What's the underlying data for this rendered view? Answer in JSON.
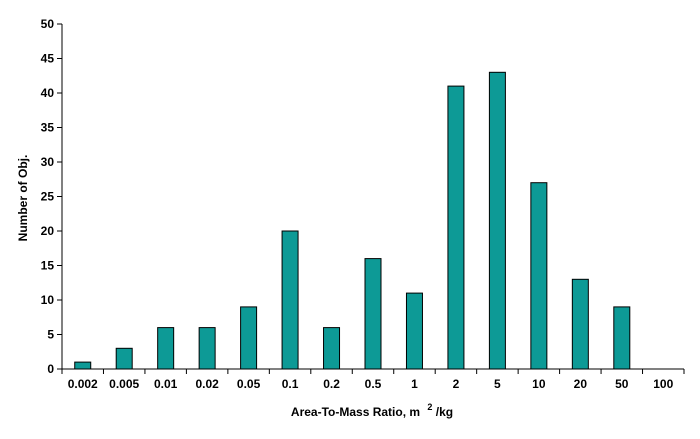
{
  "chart_data": {
    "type": "bar",
    "categories": [
      "0.002",
      "0.005",
      "0.01",
      "0.02",
      "0.05",
      "0.1",
      "0.2",
      "0.5",
      "1",
      "2",
      "5",
      "10",
      "20",
      "50",
      "100"
    ],
    "values": [
      1,
      3,
      6,
      6,
      9,
      20,
      6,
      16,
      11,
      41,
      43,
      27,
      13,
      9,
      0
    ],
    "title": "",
    "xlabel": "Area-To-Mass Ratio, m",
    "xlabel_superscript": "2",
    "xlabel_suffix": "/kg",
    "ylabel": "Number of Obj.",
    "ylim": [
      0,
      50
    ],
    "yticks": [
      0,
      5,
      10,
      15,
      20,
      25,
      30,
      35,
      40,
      45,
      50
    ],
    "grid": false,
    "legend": "none",
    "colors": {
      "bar_fill": "#0d9a96",
      "bar_stroke": "#000000",
      "axis": "#000000"
    }
  }
}
